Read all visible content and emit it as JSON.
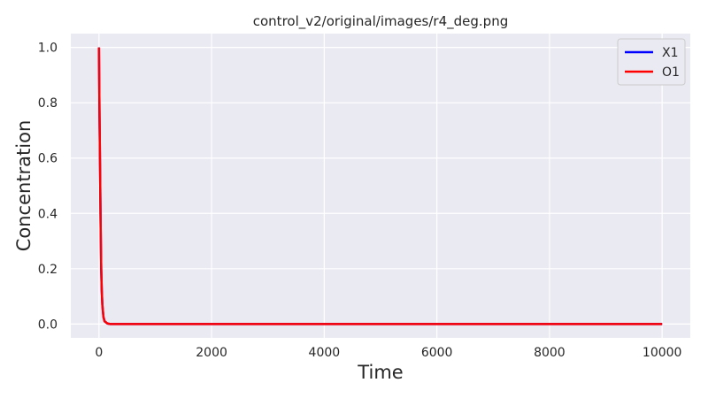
{
  "chart_data": {
    "type": "line",
    "title": "control_v2/original/images/r4_deg.png",
    "xlabel": "Time",
    "ylabel": "Concentration",
    "xlim": [
      -500,
      10500
    ],
    "ylim": [
      -0.05,
      1.05
    ],
    "xticks": [
      0,
      2000,
      4000,
      6000,
      8000,
      10000
    ],
    "yticks": [
      0.0,
      0.2,
      0.4,
      0.6,
      0.8,
      1.0
    ],
    "xtick_labels": [
      "0",
      "2000",
      "4000",
      "6000",
      "8000",
      "10000"
    ],
    "ytick_labels": [
      "0.0",
      "0.2",
      "0.4",
      "0.6",
      "0.8",
      "1.0"
    ],
    "grid": true,
    "background": "#eaeaf2",
    "grid_color": "#ffffff",
    "legend_position": "top-right",
    "series": [
      {
        "name": "X1",
        "color": "#0000ff",
        "x": [
          0,
          10,
          20,
          30,
          40,
          50,
          60,
          80,
          100,
          150,
          200,
          1000,
          5000,
          10000
        ],
        "y": [
          1.0,
          0.75,
          0.55,
          0.35,
          0.2,
          0.12,
          0.07,
          0.025,
          0.01,
          0.002,
          0.0,
          0.0,
          0.0,
          0.0
        ]
      },
      {
        "name": "O1",
        "color": "#ff0000",
        "x": [
          0,
          10,
          20,
          30,
          40,
          50,
          60,
          80,
          100,
          150,
          200,
          1000,
          5000,
          10000
        ],
        "y": [
          1.0,
          0.75,
          0.55,
          0.35,
          0.2,
          0.12,
          0.07,
          0.025,
          0.01,
          0.002,
          0.0,
          0.0,
          0.0,
          0.0
        ]
      }
    ]
  }
}
